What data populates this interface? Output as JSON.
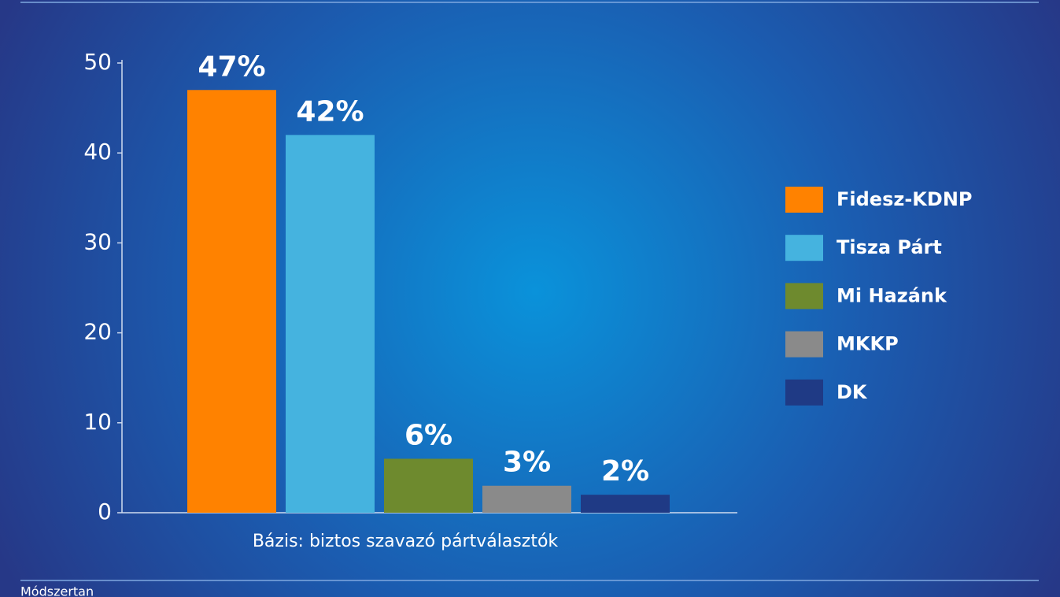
{
  "chart_data": {
    "type": "bar",
    "categories": [
      "Fidesz-KDNP",
      "Tisza Párt",
      "Mi Hazánk",
      "MKKP",
      "DK"
    ],
    "values": [
      47,
      42,
      6,
      3,
      2
    ],
    "value_labels": [
      "47%",
      "42%",
      "6%",
      "3%",
      "2%"
    ],
    "colors": [
      "#ff8200",
      "#45b3df",
      "#6e8a2e",
      "#8a8a8a",
      "#1f3a85"
    ],
    "ylim": [
      0,
      50
    ],
    "yticks": [
      0,
      10,
      20,
      30,
      40,
      50
    ],
    "xlabel": "Bázis: biztos szavazó pártválasztók",
    "legend": "right",
    "note": "Módszertan"
  }
}
